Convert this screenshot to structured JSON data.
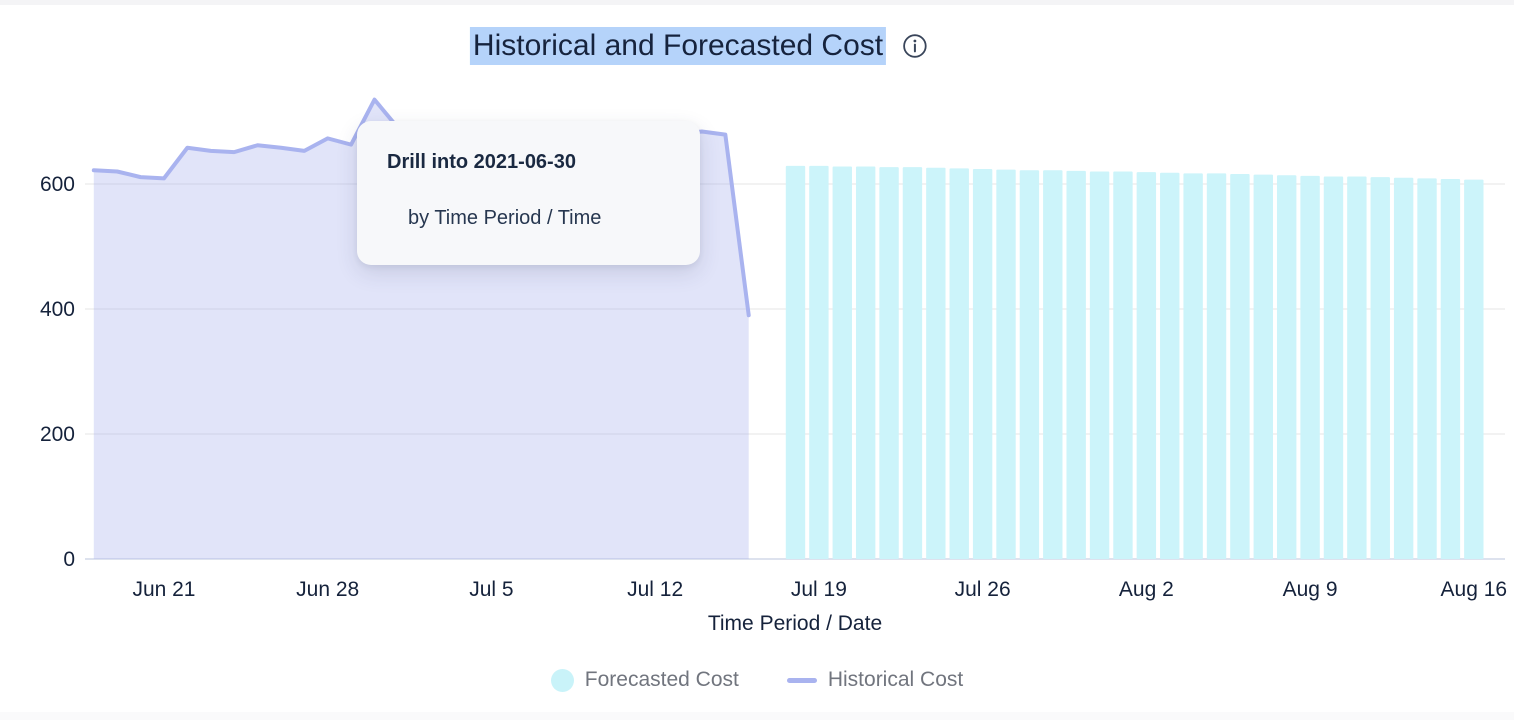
{
  "header": {
    "title": "Historical and Forecasted Cost",
    "title_highlight_color": "#b5d3fa",
    "title_text_color": "#16233d"
  },
  "drill_tooltip": {
    "title": "Drill into 2021-06-30",
    "subtitle": "by Time Period / Time"
  },
  "legend": {
    "position": "bottom",
    "items": [
      {
        "id": "forecasted-cost",
        "label": "Forecasted Cost",
        "marker": "circle",
        "color": "#c9f3f9"
      },
      {
        "id": "historical-cost",
        "label": "Historical Cost",
        "marker": "line",
        "color": "#a9b3ef"
      }
    ]
  },
  "chart_data": {
    "type": "combo",
    "title": "Historical and Forecasted Cost",
    "xlabel": "Time Period / Date",
    "ylabel": "",
    "ylim": [
      0,
      750
    ],
    "grid": true,
    "y_ticks": [
      0,
      200,
      400,
      600
    ],
    "x_ticks": [
      {
        "label": "Jun 21",
        "day_index": 3
      },
      {
        "label": "Jun 28",
        "day_index": 10
      },
      {
        "label": "Jul 5",
        "day_index": 17
      },
      {
        "label": "Jul 12",
        "day_index": 24
      },
      {
        "label": "Jul 19",
        "day_index": 31
      },
      {
        "label": "Jul 26",
        "day_index": 38
      },
      {
        "label": "Aug 2",
        "day_index": 45
      },
      {
        "label": "Aug 9",
        "day_index": 52
      },
      {
        "label": "Aug 16",
        "day_index": 59
      }
    ],
    "series": [
      {
        "name": "Historical Cost",
        "type": "area",
        "color": "#a9b3ef",
        "fill": "rgba(169,179,239,0.35)",
        "day_index_start": 0,
        "dates": [
          "2021-06-18",
          "2021-06-19",
          "2021-06-20",
          "2021-06-21",
          "2021-06-22",
          "2021-06-23",
          "2021-06-24",
          "2021-06-25",
          "2021-06-26",
          "2021-06-27",
          "2021-06-28",
          "2021-06-29",
          "2021-06-30",
          "2021-07-01",
          "2021-07-02",
          "2021-07-03",
          "2021-07-04",
          "2021-07-05",
          "2021-07-06",
          "2021-07-07",
          "2021-07-08",
          "2021-07-09",
          "2021-07-10",
          "2021-07-11",
          "2021-07-12",
          "2021-07-13",
          "2021-07-14",
          "2021-07-15",
          "2021-07-16"
        ],
        "values": [
          622,
          620,
          611,
          609,
          658,
          653,
          651,
          662,
          658,
          653,
          673,
          663,
          735,
          690,
          682,
          678,
          675,
          673,
          671,
          673,
          670,
          672,
          674,
          676,
          678,
          680,
          684,
          679,
          390
        ]
      },
      {
        "name": "Forecasted Cost",
        "type": "bar",
        "color": "#ccf4fa",
        "day_index_start": 30,
        "dates": [
          "2021-07-18",
          "2021-07-19",
          "2021-07-20",
          "2021-07-21",
          "2021-07-22",
          "2021-07-23",
          "2021-07-24",
          "2021-07-25",
          "2021-07-26",
          "2021-07-27",
          "2021-07-28",
          "2021-07-29",
          "2021-07-30",
          "2021-07-31",
          "2021-08-01",
          "2021-08-02",
          "2021-08-03",
          "2021-08-04",
          "2021-08-05",
          "2021-08-06",
          "2021-08-07",
          "2021-08-08",
          "2021-08-09",
          "2021-08-10",
          "2021-08-11",
          "2021-08-12",
          "2021-08-13",
          "2021-08-14",
          "2021-08-15",
          "2021-08-16"
        ],
        "values": [
          629,
          629,
          628,
          628,
          627,
          627,
          626,
          625,
          624,
          623,
          622,
          622,
          621,
          620,
          620,
          619,
          618,
          617,
          617,
          616,
          615,
          614,
          613,
          612,
          612,
          611,
          610,
          609,
          608,
          607
        ]
      }
    ]
  }
}
